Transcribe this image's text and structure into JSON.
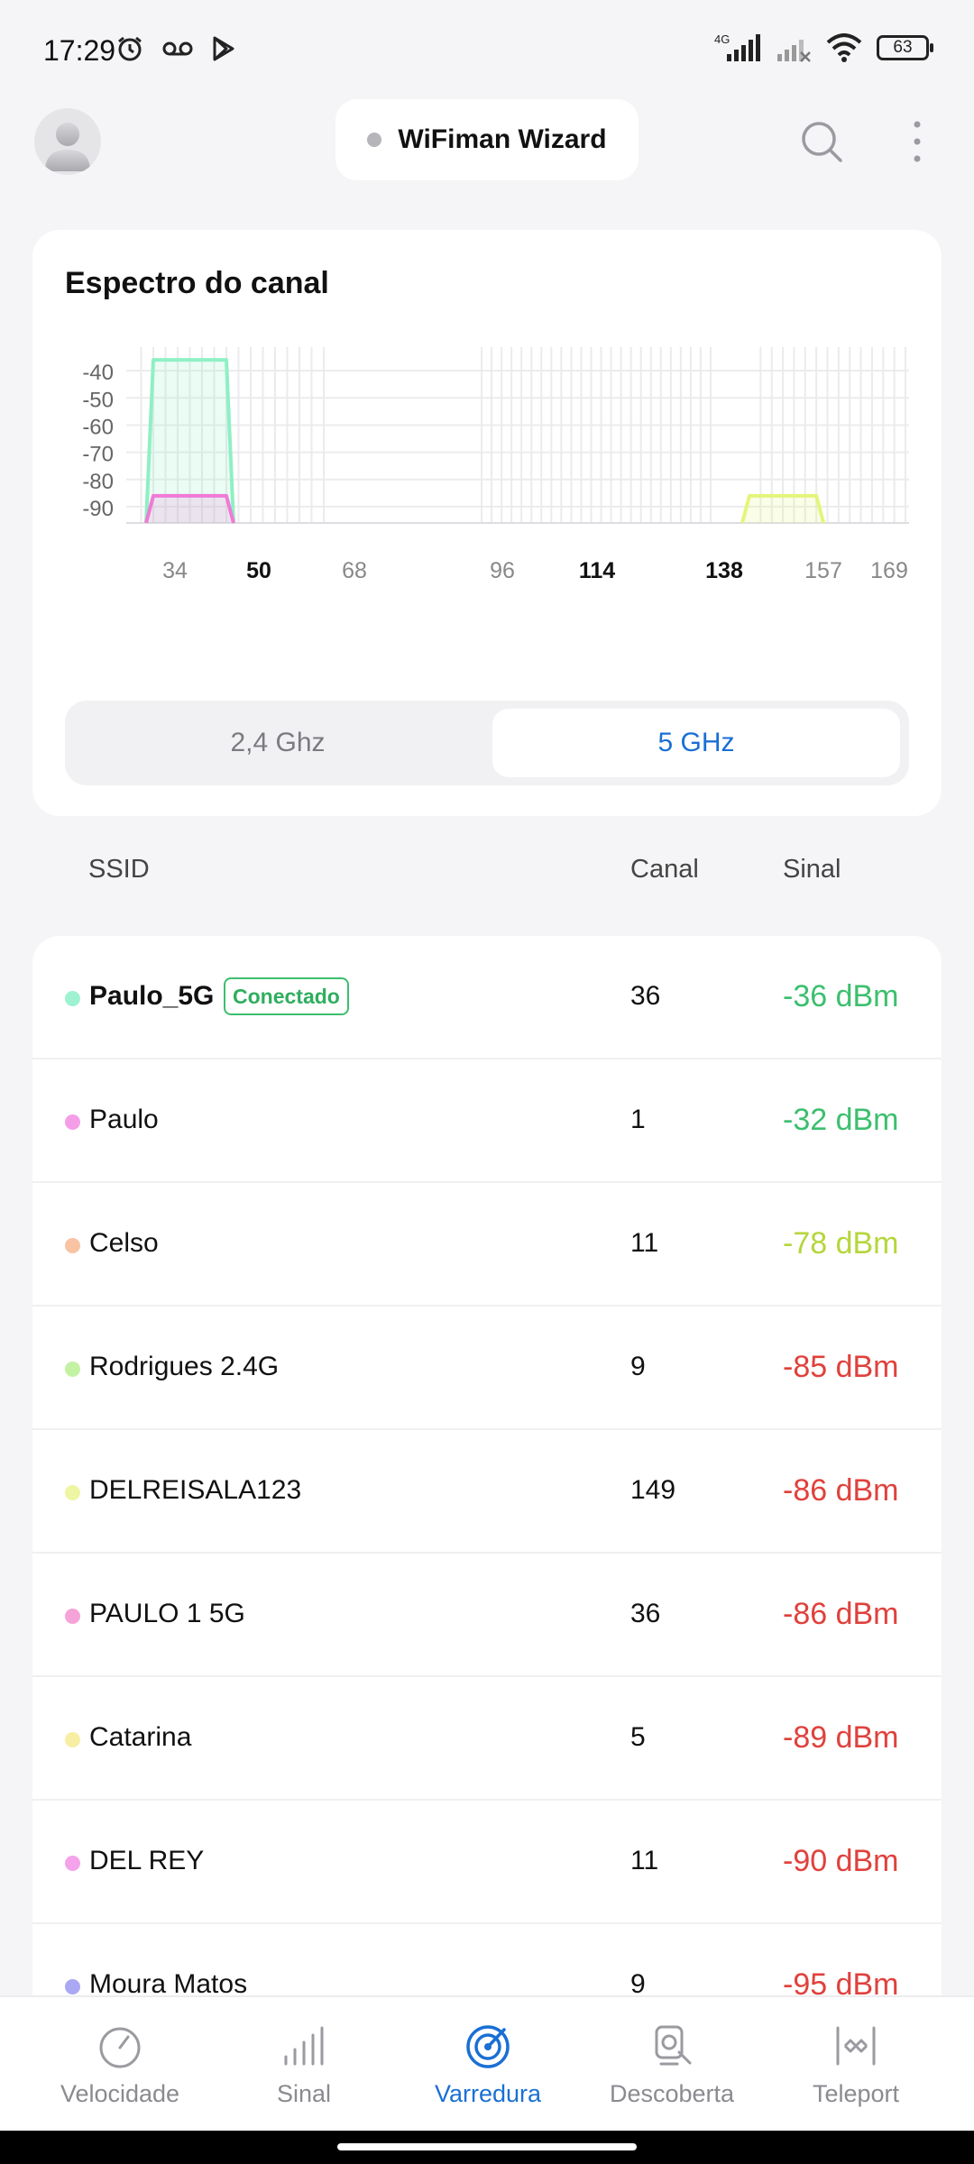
{
  "status_bar": {
    "time": "17:29",
    "network": "4G",
    "battery": "63"
  },
  "app_bar": {
    "wizard_label": "WiFiman Wizard"
  },
  "spectrum": {
    "title": "Espectro do canal",
    "band_tabs": [
      {
        "label": "2,4 Ghz",
        "selected": false
      },
      {
        "label": "5 GHz",
        "selected": true
      }
    ]
  },
  "chart_data": {
    "type": "area",
    "title": "Espectro do canal",
    "xlabel": "",
    "ylabel": "",
    "y_ticks": [
      -40,
      -50,
      -60,
      -70,
      -80,
      -90
    ],
    "x_ticks": [
      {
        "label": "34",
        "bold": false
      },
      {
        "label": "50",
        "bold": true
      },
      {
        "label": "68",
        "bold": false
      },
      {
        "label": "96",
        "bold": false
      },
      {
        "label": "114",
        "bold": true
      },
      {
        "label": "138",
        "bold": true
      },
      {
        "label": "157",
        "bold": false
      },
      {
        "label": "169",
        "bold": false
      }
    ],
    "ylim": [
      -96,
      -32
    ],
    "grid": true,
    "series": [
      {
        "channel_from": 36,
        "channel_to": 48,
        "signal": -36,
        "color": "#8ef0c4"
      },
      {
        "channel_from": 36,
        "channel_to": 48,
        "signal": -86,
        "color": "#f07ad6"
      },
      {
        "channel_from": 149,
        "channel_to": 161,
        "signal": -86,
        "color": "#e4f57a"
      }
    ]
  },
  "columns": {
    "ssid": "SSID",
    "channel": "Canal",
    "signal": "Sinal"
  },
  "networks": [
    {
      "ssid": "Paulo_5G",
      "badge": "Conectado",
      "channel": "36",
      "signal": "-36 dBm",
      "dot": "#9ef2d2",
      "signal_color": "#3cbf6e"
    },
    {
      "ssid": "Paulo",
      "channel": "1",
      "signal": "-32 dBm",
      "dot": "#f49ee8",
      "signal_color": "#3cbf6e"
    },
    {
      "ssid": "Celso",
      "channel": "11",
      "signal": "-78 dBm",
      "dot": "#f7c3a3",
      "signal_color": "#b5d63c"
    },
    {
      "ssid": "Rodrigues 2.4G",
      "channel": "9",
      "signal": "-85 dBm",
      "dot": "#c3f2a3",
      "signal_color": "#e0413c"
    },
    {
      "ssid": "DELREISALA123",
      "channel": "149",
      "signal": "-86 dBm",
      "dot": "#eef5a3",
      "signal_color": "#e0413c"
    },
    {
      "ssid": "PAULO 1 5G",
      "channel": "36",
      "signal": "-86 dBm",
      "dot": "#f5a3d8",
      "signal_color": "#e0413c"
    },
    {
      "ssid": "Catarina",
      "channel": "5",
      "signal": "-89 dBm",
      "dot": "#f7eea3",
      "signal_color": "#e0413c"
    },
    {
      "ssid": "DEL REY",
      "channel": "11",
      "signal": "-90 dBm",
      "dot": "#f4a3ea",
      "signal_color": "#e0413c"
    },
    {
      "ssid": "Moura Matos",
      "channel": "9",
      "signal": "-95 dBm",
      "dot": "#aaa8f2",
      "signal_color": "#e0413c"
    }
  ],
  "bottom_nav": [
    {
      "label": "Velocidade",
      "icon": "speedometer-icon",
      "active": false
    },
    {
      "label": "Sinal",
      "icon": "signal-bars-icon",
      "active": false
    },
    {
      "label": "Varredura",
      "icon": "radar-icon",
      "active": true
    },
    {
      "label": "Descoberta",
      "icon": "device-search-icon",
      "active": false
    },
    {
      "label": "Teleport",
      "icon": "teleport-icon",
      "active": false
    }
  ]
}
